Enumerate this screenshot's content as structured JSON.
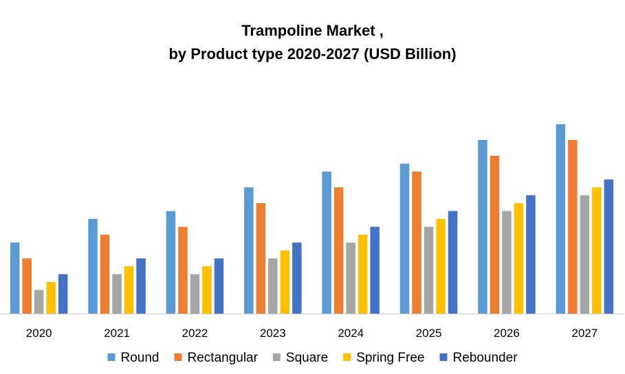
{
  "chart_data": {
    "type": "bar",
    "title_line1": "Trampoline Market ,",
    "title_line2": "by Product type 2020-2027 (USD Billion)",
    "categories": [
      "2020",
      "2021",
      "2022",
      "2023",
      "2024",
      "2025",
      "2026",
      "2027"
    ],
    "series": [
      {
        "name": "Round",
        "color": "#5B9BD5",
        "values": [
          4.5,
          6.0,
          6.5,
          8.0,
          9.0,
          9.5,
          11.0,
          12.0
        ]
      },
      {
        "name": "Rectangular",
        "color": "#ED7D31",
        "values": [
          3.5,
          5.0,
          5.5,
          7.0,
          8.0,
          9.0,
          10.0,
          11.0
        ]
      },
      {
        "name": "Square",
        "color": "#A5A5A5",
        "values": [
          1.5,
          2.5,
          2.5,
          3.5,
          4.5,
          5.5,
          6.5,
          7.5
        ]
      },
      {
        "name": "Spring Free",
        "color": "#FFC000",
        "values": [
          2.0,
          3.0,
          3.0,
          4.0,
          5.0,
          6.0,
          7.0,
          8.0
        ]
      },
      {
        "name": "Rebounder",
        "color": "#4472C4",
        "values": [
          2.5,
          3.5,
          3.5,
          4.5,
          5.5,
          6.5,
          7.5,
          8.5
        ]
      }
    ],
    "ylim": [
      0,
      12
    ],
    "grid": false,
    "legend_position": "bottom"
  }
}
